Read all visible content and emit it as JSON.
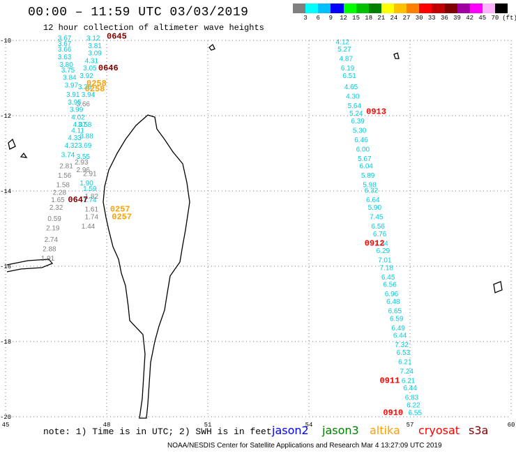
{
  "title": "00:00 – 11:59 UTC 03/03/2019",
  "subtitle": "12 hour collection of altimeter wave heights",
  "scale": {
    "unit": "(ft)",
    "colors": [
      "#808080",
      "#00ffff",
      "#00bfff",
      "#0000ff",
      "#00ff00",
      "#00c000",
      "#008000",
      "#ffff00",
      "#ffc000",
      "#ff8000",
      "#ff0000",
      "#c00000",
      "#800000",
      "#a000a0",
      "#ff00ff",
      "#ffb0ff",
      "#000000"
    ],
    "labels": [
      "3",
      "6",
      "9",
      "12",
      "15",
      "18",
      "21",
      "24",
      "27",
      "30",
      "33",
      "36",
      "39",
      "42",
      "45",
      "70"
    ]
  },
  "axes": {
    "x_ticks": [
      "45",
      "48",
      "51",
      "54",
      "57",
      "60"
    ],
    "y_ticks": [
      "-10",
      "-12",
      "-14",
      "-16",
      "-18",
      "-20"
    ]
  },
  "note": "note: 1) Time is in UTC; 2) SWH is in feet",
  "satellites": [
    {
      "name": "jason2",
      "color": "#0000ff"
    },
    {
      "name": "jason3",
      "color": "#008000"
    },
    {
      "name": "altika",
      "color": "#ffa000"
    },
    {
      "name": "cryosat",
      "color": "#ff0000"
    },
    {
      "name": "s3a",
      "color": "#800000"
    }
  ],
  "footer": "NOAA/NESDIS Center for Satellite Applications and Research    Mar  4 13:27:09 UTC 2019",
  "time_labels": [
    {
      "text": "0645",
      "lon": 48.0,
      "lat": -9.95,
      "color": "#800000"
    },
    {
      "text": "0646",
      "lon": 47.75,
      "lat": -10.8,
      "color": "#800000"
    },
    {
      "text": "0647",
      "lon": 46.85,
      "lat": -14.3,
      "color": "#800000"
    },
    {
      "text": "0258",
      "lon": 47.4,
      "lat": -11.2,
      "color": "#ffa000"
    },
    {
      "text": "0258",
      "lon": 47.35,
      "lat": -11.35,
      "color": "#ffa000"
    },
    {
      "text": "0257",
      "lon": 48.1,
      "lat": -14.55,
      "color": "#ffa000"
    },
    {
      "text": "0257",
      "lon": 48.15,
      "lat": -14.75,
      "color": "#ffa000"
    },
    {
      "text": "0913",
      "lon": 55.7,
      "lat": -11.95,
      "color": "#ff0000"
    },
    {
      "text": "0912",
      "lon": 55.65,
      "lat": -15.45,
      "color": "#ff0000"
    },
    {
      "text": "0911",
      "lon": 56.1,
      "lat": -19.1,
      "color": "#ff0000"
    },
    {
      "text": "0910",
      "lon": 56.2,
      "lat": -19.95,
      "color": "#ff0000"
    }
  ],
  "tracks": [
    {
      "name": "s3a-east",
      "color": "#00ccdd",
      "points": [
        [
          "3.12",
          47.4,
          -10.0
        ],
        [
          "3.81",
          47.45,
          -10.2
        ],
        [
          "3.09",
          47.45,
          -10.4
        ],
        [
          "4.31",
          47.35,
          -10.6
        ],
        [
          "3.05",
          47.3,
          -10.8
        ],
        [
          "3.92",
          47.2,
          -11.0
        ],
        [
          "3.38",
          47.15,
          -11.3
        ],
        [
          "3.94",
          47.25,
          -11.5
        ],
        [
          "3.58",
          47.15,
          -12.3
        ],
        [
          "3.88",
          47.2,
          -12.6
        ],
        [
          "3.69",
          47.15,
          -12.85
        ],
        [
          "3.55",
          47.1,
          -13.15
        ],
        [
          "1.90",
          47.2,
          -13.85
        ],
        [
          "1.59",
          47.3,
          -14.0
        ],
        [
          "1.74",
          47.3,
          -14.3
        ]
      ]
    },
    {
      "name": "s3a-gray",
      "color": "#808080",
      "points": [
        [
          "3.66",
          47.1,
          -11.75
        ],
        [
          "2.93",
          47.05,
          -13.3
        ],
        [
          "2.96",
          47.1,
          -13.5
        ],
        [
          "2.91",
          47.3,
          -13.6
        ],
        [
          "1.82",
          47.35,
          -14.2
        ],
        [
          "1.61",
          47.35,
          -14.55
        ],
        [
          "1.74",
          47.35,
          -14.75
        ],
        [
          "1.44",
          47.25,
          -15.0
        ]
      ]
    },
    {
      "name": "jason-west",
      "color": "#00ccdd",
      "points": [
        [
          "3.67",
          46.55,
          -10.0
        ],
        [
          "3.67",
          46.55,
          -10.15
        ],
        [
          "3.66",
          46.55,
          -10.3
        ],
        [
          "3.63",
          46.55,
          -10.5
        ],
        [
          "3.80",
          46.6,
          -10.7
        ],
        [
          "3.75",
          46.65,
          -10.85
        ],
        [
          "3.84",
          46.7,
          -11.05
        ],
        [
          "3.97",
          46.75,
          -11.25
        ],
        [
          "3.91",
          46.8,
          -11.5
        ],
        [
          "3.95",
          46.85,
          -11.7
        ],
        [
          "3.99",
          46.9,
          -11.9
        ],
        [
          "4.02",
          46.95,
          -12.1
        ],
        [
          "4.07",
          47.0,
          -12.3
        ],
        [
          "4.11",
          46.95,
          -12.45
        ],
        [
          "4.33",
          46.85,
          -12.65
        ],
        [
          "4.32",
          46.75,
          -12.85
        ],
        [
          "3.74",
          46.65,
          -13.1
        ]
      ]
    },
    {
      "name": "jason-west-gray",
      "color": "#808080",
      "points": [
        [
          "2.81",
          46.6,
          -13.4
        ],
        [
          "1.56",
          46.55,
          -13.65
        ],
        [
          "1.58",
          46.5,
          -13.9
        ],
        [
          "2.28",
          46.4,
          -14.1
        ],
        [
          "1.65",
          46.35,
          -14.3
        ],
        [
          "2.32",
          46.3,
          -14.5
        ],
        [
          "0.59",
          46.25,
          -14.8
        ],
        [
          "2.19",
          46.2,
          -15.05
        ],
        [
          "2.74",
          46.15,
          -15.35
        ],
        [
          "2.88",
          46.1,
          -15.6
        ],
        [
          "1.91",
          46.05,
          -15.85
        ]
      ]
    },
    {
      "name": "cryosat",
      "color": "#00ccdd",
      "points": [
        [
          "4.12",
          54.8,
          -10.1
        ],
        [
          "5.27",
          54.85,
          -10.3
        ],
        [
          "4.87",
          54.9,
          -10.55
        ],
        [
          "6.19",
          54.95,
          -10.8
        ],
        [
          "6.51",
          55.0,
          -11.0
        ],
        [
          "4.65",
          55.05,
          -11.3
        ],
        [
          "4.30",
          55.1,
          -11.55
        ],
        [
          "5.64",
          55.15,
          -11.8
        ],
        [
          "5.24",
          55.2,
          -12.0
        ],
        [
          "6.39",
          55.25,
          -12.2
        ],
        [
          "5.30",
          55.3,
          -12.45
        ],
        [
          "6.46",
          55.35,
          -12.7
        ],
        [
          "6.00",
          55.4,
          -12.95
        ],
        [
          "5.67",
          55.45,
          -13.2
        ],
        [
          "6.04",
          55.5,
          -13.4
        ],
        [
          "5.89",
          55.55,
          -13.65
        ],
        [
          "5.98",
          55.6,
          -13.9
        ],
        [
          "6.32",
          55.65,
          -14.05
        ],
        [
          "6.64",
          55.7,
          -14.3
        ],
        [
          "5.90",
          55.75,
          -14.5
        ],
        [
          "7.45",
          55.8,
          -14.75
        ],
        [
          "6.56",
          55.85,
          -15.0
        ],
        [
          "6.76",
          55.9,
          -15.2
        ],
        [
          "7.34",
          55.95,
          -15.45
        ],
        [
          "6.29",
          56.0,
          -15.65
        ],
        [
          "7.01",
          56.05,
          -15.9
        ],
        [
          "7.18",
          56.1,
          -16.1
        ],
        [
          "6.45",
          56.15,
          -16.35
        ],
        [
          "6.56",
          56.2,
          -16.55
        ],
        [
          "6.96",
          56.25,
          -16.8
        ],
        [
          "6.48",
          56.3,
          -17.0
        ],
        [
          "6.65",
          56.35,
          -17.25
        ],
        [
          "6.59",
          56.4,
          -17.45
        ],
        [
          "6.49",
          56.45,
          -17.7
        ],
        [
          "6.44",
          56.5,
          -17.9
        ],
        [
          "7.32",
          56.55,
          -18.15
        ],
        [
          "6.53",
          56.6,
          -18.35
        ],
        [
          "6.21",
          56.65,
          -18.6
        ],
        [
          "7.24",
          56.7,
          -18.85
        ],
        [
          "6.21",
          56.75,
          -19.1
        ],
        [
          "6.44",
          56.8,
          -19.3
        ],
        [
          "6.83",
          56.85,
          -19.55
        ],
        [
          "6.22",
          56.9,
          -19.75
        ],
        [
          "6.55",
          56.95,
          -19.95
        ]
      ]
    }
  ]
}
